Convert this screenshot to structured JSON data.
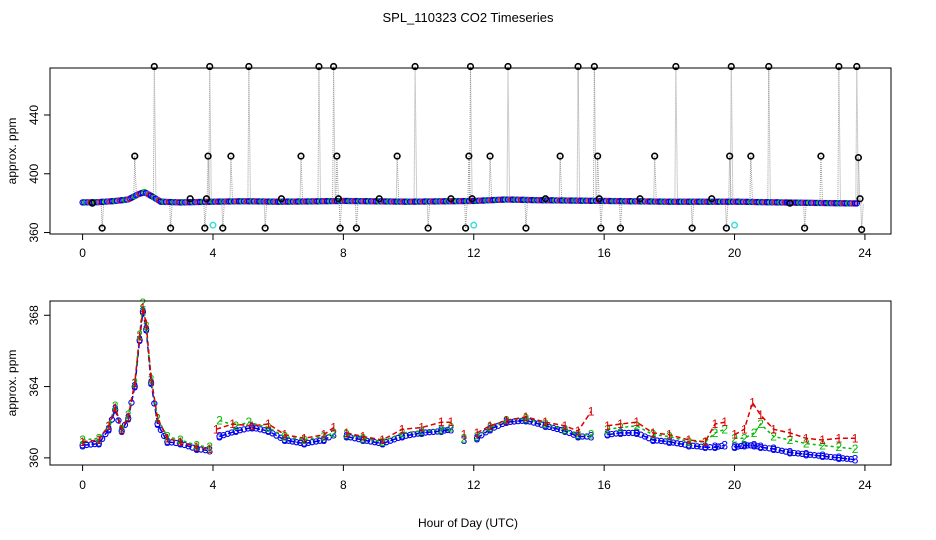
{
  "chart_data": [
    {
      "type": "scatter",
      "title": "SPL_110323  CO2 Timeseries",
      "xlabel": "",
      "ylabel": "approx. ppm",
      "xlim": [
        -1,
        24.8
      ],
      "ylim": [
        359,
        472
      ],
      "xticks": [
        0,
        4,
        8,
        12,
        16,
        20,
        24
      ],
      "yticks": [
        360,
        400,
        440
      ],
      "grid": false,
      "baseline": {
        "x": [
          0,
          0.5,
          1.0,
          1.4,
          1.7,
          1.9,
          2.1,
          2.4,
          3,
          4,
          5,
          6,
          7,
          8,
          10,
          12,
          13,
          14,
          16,
          18,
          20,
          22,
          23.8
        ],
        "y": [
          380.5,
          380.7,
          381.5,
          382.5,
          386,
          387.5,
          385,
          381,
          380.5,
          381,
          381.3,
          381,
          381.2,
          381.5,
          381,
          381.5,
          382.5,
          382,
          381.5,
          381,
          381,
          380.3,
          379.8
        ]
      },
      "spikes": {
        "x": [
          0.3,
          0.6,
          1.6,
          2.2,
          2.7,
          3.3,
          3.75,
          3.8,
          3.85,
          3.9,
          4.3,
          4.55,
          5.1,
          5.6,
          6.1,
          6.7,
          7.25,
          7.7,
          7.8,
          7.85,
          7.9,
          8.4,
          9.1,
          9.65,
          10.2,
          10.6,
          11.3,
          11.75,
          11.85,
          11.9,
          11.95,
          12.5,
          13.05,
          13.6,
          14.2,
          14.65,
          15.2,
          15.7,
          15.8,
          15.85,
          15.9,
          16.5,
          17.1,
          17.55,
          18.2,
          18.7,
          19.3,
          19.75,
          19.85,
          19.9,
          20.5,
          21.05,
          21.7,
          22.15,
          22.65,
          23.2,
          23.75,
          23.8,
          23.85,
          23.9
        ],
        "y": [
          380,
          363,
          412,
          473,
          363,
          383,
          363,
          383,
          412,
          473,
          363,
          412,
          473,
          363,
          383,
          412,
          473,
          473,
          412,
          383,
          363,
          363,
          383,
          412,
          473,
          363,
          383,
          363,
          412,
          473,
          383,
          412,
          473,
          363,
          383,
          412,
          473,
          473,
          412,
          383,
          363,
          363,
          383,
          412,
          473,
          363,
          383,
          363,
          412,
          473,
          412,
          473,
          380,
          363,
          412,
          473,
          473,
          411,
          383,
          362
        ]
      },
      "cyan_points": {
        "x": [
          4.0,
          12.0,
          20.0
        ],
        "y": [
          365,
          365,
          365
        ]
      },
      "series": [
        {
          "name": "1",
          "color": "#dd0000"
        },
        {
          "name": "2",
          "color": "#00bb00"
        },
        {
          "name": "3",
          "color": "#0000ee"
        }
      ]
    },
    {
      "type": "scatter",
      "title": "",
      "xlabel": "Hour of Day (UTC)",
      "ylabel": "approx. ppm",
      "xlim": [
        -1,
        24.8
      ],
      "ylim": [
        359.6,
        368.8
      ],
      "xticks": [
        0,
        4,
        8,
        12,
        16,
        20,
        24
      ],
      "yticks": [
        360,
        364,
        368
      ],
      "grid": false,
      "series": [
        {
          "name": "1",
          "color": "#dd0000",
          "x": [
            0,
            0.5,
            0.8,
            1.0,
            1.2,
            1.4,
            1.6,
            1.75,
            1.85,
            1.95,
            2.1,
            2.3,
            2.6,
            3,
            3.5,
            3.9,
            4.1,
            4.6,
            5.2,
            5.7,
            6.2,
            6.8,
            7.4,
            7.7,
            8.1,
            8.6,
            9.2,
            9.8,
            10.4,
            11.0,
            11.3,
            11.7,
            12.1,
            12.5,
            13.0,
            13.6,
            14.2,
            14.8,
            15.2,
            15.6,
            16.1,
            16.5,
            17.0,
            17.5,
            18.0,
            18.6,
            19.1,
            19.4,
            19.7,
            20.0,
            20.3,
            20.55,
            20.8,
            21.2,
            21.7,
            22.2,
            22.7,
            23.2,
            23.7
          ],
          "y": [
            360.9,
            361.0,
            361.8,
            362.8,
            361.6,
            362.3,
            364.2,
            366.8,
            368.4,
            367.5,
            364.5,
            362.2,
            361.1,
            360.9,
            360.6,
            360.5,
            361.6,
            361.9,
            361.8,
            361.9,
            361.3,
            361.1,
            361.3,
            361.7,
            361.4,
            361.2,
            361.0,
            361.6,
            361.7,
            362.0,
            362.0,
            361.3,
            361.4,
            361.8,
            362.1,
            362.3,
            362.0,
            361.8,
            361.5,
            362.6,
            361.8,
            361.9,
            362.0,
            361.4,
            361.3,
            361.0,
            360.9,
            361.9,
            362.0,
            361.3,
            361.6,
            363.1,
            362.4,
            361.6,
            361.4,
            361.1,
            361.0,
            361.1,
            361.1
          ]
        },
        {
          "name": "2",
          "color": "#00bb00",
          "x": [
            0,
            0.5,
            0.8,
            1.0,
            1.2,
            1.4,
            1.6,
            1.75,
            1.85,
            1.95,
            2.1,
            2.3,
            2.6,
            3,
            3.5,
            3.9,
            4.2,
            4.7,
            5.1,
            5.7,
            6.2,
            6.8,
            7.4,
            7.7,
            8.1,
            8.6,
            9.2,
            9.8,
            10.4,
            11.0,
            11.3,
            11.7,
            12.1,
            12.5,
            13.0,
            13.6,
            14.2,
            14.8,
            15.2,
            15.6,
            16.1,
            16.5,
            17.0,
            17.5,
            18.0,
            18.6,
            19.1,
            19.4,
            19.7,
            20.0,
            20.3,
            20.6,
            20.8,
            21.2,
            21.7,
            22.2,
            22.7,
            23.2,
            23.7
          ],
          "y": [
            361.0,
            361.1,
            361.8,
            362.9,
            361.6,
            362.4,
            364.2,
            366.9,
            368.7,
            367.4,
            364.4,
            362.2,
            361.2,
            361.0,
            360.7,
            360.6,
            362.1,
            361.8,
            362.0,
            361.7,
            361.2,
            361.0,
            361.2,
            361.4,
            361.3,
            361.1,
            360.9,
            361.4,
            361.5,
            361.6,
            361.7,
            361.1,
            361.2,
            361.7,
            362.1,
            362.2,
            361.9,
            361.6,
            361.3,
            361.3,
            361.6,
            361.7,
            361.8,
            361.3,
            361.2,
            360.9,
            360.9,
            361.4,
            361.6,
            361.1,
            361.1,
            361.4,
            361.9,
            361.2,
            361.0,
            360.8,
            360.7,
            360.6,
            360.5
          ]
        },
        {
          "name": "3",
          "color": "#0000ee",
          "x": [
            0,
            0.5,
            0.8,
            1.0,
            1.2,
            1.4,
            1.6,
            1.75,
            1.85,
            1.95,
            2.1,
            2.3,
            2.6,
            3,
            3.5,
            3.9,
            4.2,
            4.7,
            5.2,
            5.7,
            6.2,
            6.8,
            7.4,
            7.7,
            8.1,
            8.6,
            9.2,
            9.8,
            10.4,
            11.0,
            11.3,
            11.7,
            12.1,
            12.5,
            13.0,
            13.6,
            14.2,
            14.8,
            15.2,
            15.6,
            16.1,
            16.5,
            17.0,
            17.5,
            18.0,
            18.6,
            19.1,
            19.4,
            19.7,
            20.0,
            20.3,
            20.6,
            20.8,
            21.2,
            21.7,
            22.2,
            22.7,
            23.2,
            23.7
          ],
          "y": [
            360.7,
            360.8,
            361.6,
            362.7,
            361.5,
            362.2,
            364.0,
            366.6,
            368.2,
            367.2,
            364.2,
            361.9,
            360.9,
            360.8,
            360.5,
            360.4,
            361.2,
            361.5,
            361.7,
            361.5,
            361.0,
            360.8,
            361.0,
            361.3,
            361.2,
            361.0,
            360.8,
            361.2,
            361.4,
            361.5,
            361.6,
            361.0,
            361.1,
            361.6,
            362.0,
            362.1,
            361.8,
            361.5,
            361.2,
            361.2,
            361.3,
            361.4,
            361.4,
            361.0,
            360.9,
            360.7,
            360.6,
            360.6,
            360.7,
            360.6,
            360.7,
            360.7,
            360.6,
            360.5,
            360.3,
            360.2,
            360.1,
            360.0,
            359.9
          ]
        }
      ]
    }
  ]
}
